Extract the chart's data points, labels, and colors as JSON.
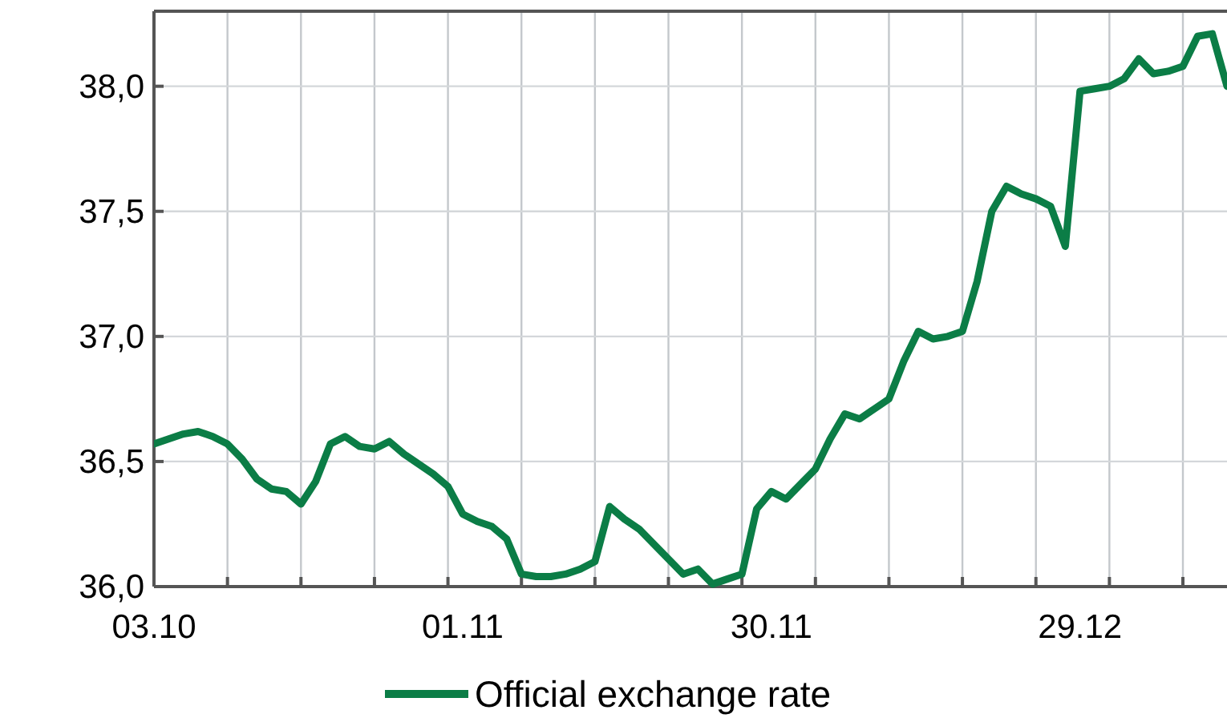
{
  "chart_data": {
    "type": "line",
    "categories": [
      "03.10",
      null,
      null,
      null,
      null,
      null,
      null,
      null,
      null,
      null,
      null,
      null,
      null,
      null,
      null,
      null,
      null,
      null,
      null,
      null,
      null,
      "01.11",
      null,
      null,
      null,
      null,
      null,
      null,
      null,
      null,
      null,
      null,
      null,
      null,
      null,
      null,
      null,
      null,
      null,
      null,
      null,
      null,
      "30.11",
      null,
      null,
      null,
      null,
      null,
      null,
      null,
      null,
      null,
      null,
      null,
      null,
      null,
      null,
      null,
      null,
      null,
      null,
      null,
      null,
      "29.12",
      null,
      null,
      null,
      null,
      null,
      null,
      null,
      null,
      null,
      null
    ],
    "series": [
      {
        "name": "Official exchange rate",
        "color": "#0b7d46",
        "values": [
          36.57,
          36.59,
          36.61,
          36.62,
          36.6,
          36.57,
          36.51,
          36.43,
          36.39,
          36.38,
          36.33,
          36.42,
          36.57,
          36.6,
          36.56,
          36.55,
          36.58,
          36.53,
          36.49,
          36.45,
          36.4,
          36.29,
          36.26,
          36.24,
          36.19,
          36.05,
          36.04,
          36.04,
          36.05,
          36.07,
          36.1,
          36.32,
          36.27,
          36.23,
          36.17,
          36.11,
          36.05,
          36.07,
          36.01,
          36.03,
          36.05,
          36.31,
          36.38,
          36.35,
          36.41,
          36.47,
          36.59,
          36.69,
          36.67,
          36.71,
          36.75,
          36.9,
          37.02,
          36.99,
          37.0,
          37.02,
          37.22,
          37.5,
          37.6,
          37.57,
          37.55,
          37.52,
          37.36,
          37.98,
          37.99,
          38.0,
          38.03,
          38.11,
          38.05,
          38.06,
          38.08,
          38.2,
          38.21,
          38.0
        ]
      }
    ],
    "ylim": [
      36,
      38.3
    ],
    "yticks": [
      {
        "value": 36,
        "label": "36,0"
      },
      {
        "value": 36.5,
        "label": "36,5"
      },
      {
        "value": 37,
        "label": "37,0"
      },
      {
        "value": 37.5,
        "label": "37,5"
      },
      {
        "value": 38,
        "label": "38,0"
      }
    ],
    "grid": true,
    "legend": "bottom",
    "marker": "none",
    "line_style": "solid"
  }
}
